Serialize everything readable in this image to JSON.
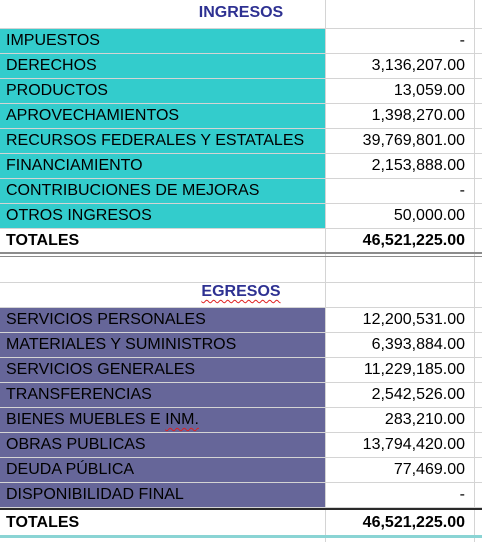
{
  "ingresos": {
    "title": "INGRESOS",
    "rows": [
      {
        "label": "IMPUESTOS",
        "amount": "-"
      },
      {
        "label": "DERECHOS",
        "amount": "3,136,207.00"
      },
      {
        "label": "PRODUCTOS",
        "amount": "13,059.00"
      },
      {
        "label": "APROVECHAMIENTOS",
        "amount": "1,398,270.00"
      },
      {
        "label": "RECURSOS FEDERALES Y ESTATALES",
        "amount": "39,769,801.00"
      },
      {
        "label": "FINANCIAMIENTO",
        "amount": "2,153,888.00"
      },
      {
        "label": "CONTRIBUCIONES DE MEJORAS",
        "amount": "-"
      },
      {
        "label": "OTROS INGRESOS",
        "amount": "50,000.00"
      }
    ],
    "total_label": "TOTALES",
    "total_amount": "46,521,225.00"
  },
  "egresos": {
    "title": "EGRESOS",
    "rows": [
      {
        "label": "SERVICIOS PERSONALES",
        "amount": "12,200,531.00"
      },
      {
        "label": "MATERIALES Y SUMINISTROS",
        "amount": "6,393,884.00"
      },
      {
        "label": "SERVICIOS GENERALES",
        "amount": "11,229,185.00"
      },
      {
        "label": "TRANSFERENCIAS",
        "amount": "2,542,526.00"
      },
      {
        "label_pre": "BIENES MUEBLES E ",
        "label_underlined": "INM.",
        "amount": "283,210.00"
      },
      {
        "label": "OBRAS PUBLICAS",
        "amount": "13,794,420.00"
      },
      {
        "label": "DEUDA PÚBLICA",
        "amount": "77,469.00"
      },
      {
        "label": "DISPONIBILIDAD FINAL",
        "amount": "-"
      }
    ],
    "total_label": "TOTALES",
    "total_amount": "46,521,225.00"
  },
  "colors": {
    "ingresos_fill": "#33cccc",
    "egresos_fill": "#666699",
    "header_text": "#2e3192",
    "spellcheck_underline": "#e02020"
  }
}
